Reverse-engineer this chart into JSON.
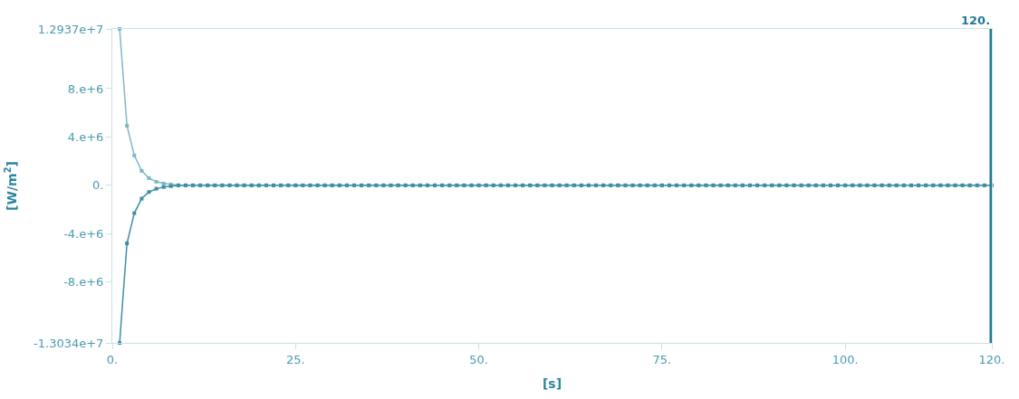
{
  "chart_data": {
    "type": "line",
    "xlabel": "[s]",
    "ylabel": "[W/m$^{2}$]",
    "x": [
      1,
      2,
      3,
      4,
      5,
      6,
      7,
      8,
      9,
      10,
      11,
      12,
      13,
      14,
      15,
      16,
      17,
      18,
      19,
      20,
      21,
      22,
      23,
      24,
      25,
      26,
      27,
      28,
      29,
      30,
      31,
      32,
      33,
      34,
      35,
      36,
      37,
      38,
      39,
      40,
      41,
      42,
      43,
      44,
      45,
      46,
      47,
      48,
      49,
      50,
      51,
      52,
      53,
      54,
      55,
      56,
      57,
      58,
      59,
      60,
      61,
      62,
      63,
      64,
      65,
      66,
      67,
      68,
      69,
      70,
      71,
      72,
      73,
      74,
      75,
      76,
      77,
      78,
      79,
      80,
      81,
      82,
      83,
      84,
      85,
      86,
      87,
      88,
      89,
      90,
      91,
      92,
      93,
      94,
      95,
      96,
      97,
      98,
      99,
      100,
      101,
      102,
      103,
      104,
      105,
      106,
      107,
      108,
      109,
      110,
      111,
      112,
      113,
      114,
      115,
      116,
      117,
      118,
      119,
      120
    ],
    "series": [
      {
        "color": "#7db7c8",
        "values": [
          12937000,
          4930000,
          2470000,
          1200000,
          600000,
          300000,
          150000,
          75000,
          0,
          0,
          0,
          0,
          0,
          0,
          0,
          0,
          0,
          0,
          0,
          0,
          0,
          0,
          0,
          0,
          0,
          0,
          0,
          0,
          0,
          0,
          0,
          0,
          0,
          0,
          0,
          0,
          0,
          0,
          0,
          0,
          0,
          0,
          0,
          0,
          0,
          0,
          0,
          0,
          0,
          0,
          0,
          0,
          0,
          0,
          0,
          0,
          0,
          0,
          0,
          0,
          0,
          0,
          0,
          0,
          0,
          0,
          0,
          0,
          0,
          0,
          0,
          0,
          0,
          0,
          0,
          0,
          0,
          0,
          0,
          0,
          0,
          0,
          0,
          0,
          0,
          0,
          0,
          0,
          0,
          0,
          0,
          0,
          0,
          0,
          0,
          0,
          0,
          0,
          0,
          0,
          0,
          0,
          0,
          0,
          0,
          0,
          0,
          0,
          0,
          0,
          0,
          0,
          0,
          0,
          0,
          0,
          0,
          0,
          0,
          0
        ]
      },
      {
        "color": "#3d8fa6",
        "values": [
          -13034000,
          -4800000,
          -2300000,
          -1100000,
          -550000,
          -280000,
          -140000,
          -70000,
          0,
          0,
          0,
          0,
          0,
          0,
          0,
          0,
          0,
          0,
          0,
          0,
          0,
          0,
          0,
          0,
          0,
          0,
          0,
          0,
          0,
          0,
          0,
          0,
          0,
          0,
          0,
          0,
          0,
          0,
          0,
          0,
          0,
          0,
          0,
          0,
          0,
          0,
          0,
          0,
          0,
          0,
          0,
          0,
          0,
          0,
          0,
          0,
          0,
          0,
          0,
          0,
          0,
          0,
          0,
          0,
          0,
          0,
          0,
          0,
          0,
          0,
          0,
          0,
          0,
          0,
          0,
          0,
          0,
          0,
          0,
          0,
          0,
          0,
          0,
          0,
          0,
          0,
          0,
          0,
          0,
          0,
          0,
          0,
          0,
          0,
          0,
          0,
          0,
          0,
          0,
          0,
          0,
          0,
          0,
          0,
          0,
          0,
          0,
          0,
          0,
          0,
          0,
          0,
          0,
          0,
          0,
          0,
          0,
          0,
          0,
          0
        ]
      }
    ],
    "xlim": [
      0,
      120
    ],
    "xticks": [
      {
        "value": 0,
        "label": "0."
      },
      {
        "value": 25,
        "label": "25."
      },
      {
        "value": 50,
        "label": "50."
      },
      {
        "value": 75,
        "label": "75."
      },
      {
        "value": 100,
        "label": "100."
      },
      {
        "value": 120,
        "label": "120."
      }
    ],
    "ylim": [
      -13034000,
      12937000
    ],
    "yticks": [
      {
        "value": -13034000,
        "label": "-1.3034e+7"
      },
      {
        "value": -8000000,
        "label": "-8.e+6"
      },
      {
        "value": -4000000,
        "label": "-4.e+6"
      },
      {
        "value": 0,
        "label": "0."
      },
      {
        "value": 4000000,
        "label": "4.e+6"
      },
      {
        "value": 8000000,
        "label": "8.e+6"
      },
      {
        "value": 12937000,
        "label": "1.2937e+7"
      }
    ],
    "ref_lines": [
      {
        "axis": "x",
        "value": 120,
        "label": "120.",
        "color": "#1f7a93"
      }
    ],
    "marker": "square",
    "line_style": "solid"
  }
}
